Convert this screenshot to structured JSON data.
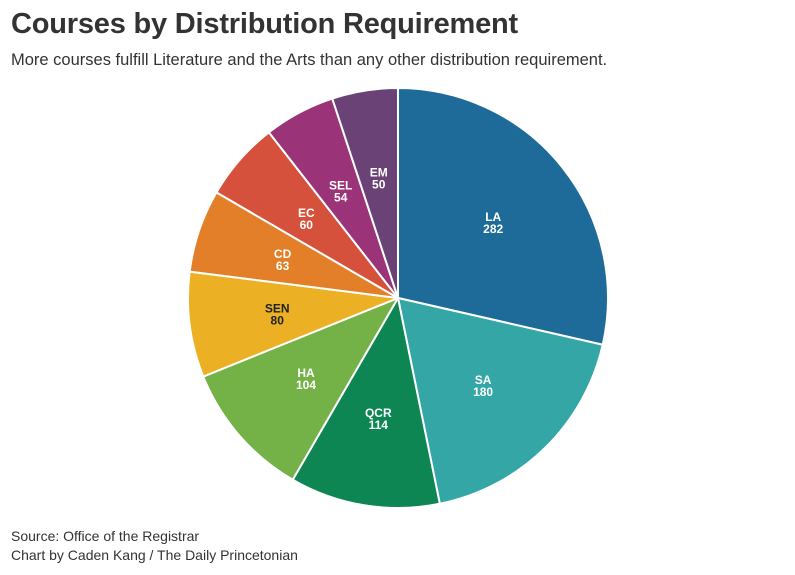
{
  "chart_data": {
    "type": "pie",
    "title": "Courses by Distribution Requirement",
    "subtitle": "More courses fulfill Literature and the Arts than any other distribution requirement.",
    "source": "Source: Office of the Registrar",
    "credit": "Chart by Caden Kang / The Daily Princetonian",
    "slices": [
      {
        "label": "LA",
        "value": 282,
        "color": "#1e6b99",
        "text_color": "#ffffff"
      },
      {
        "label": "SA",
        "value": 180,
        "color": "#34a6a6",
        "text_color": "#ffffff"
      },
      {
        "label": "QCR",
        "value": 114,
        "color": "#0d8653",
        "text_color": "#ffffff"
      },
      {
        "label": "HA",
        "value": 104,
        "color": "#74b147",
        "text_color": "#ffffff"
      },
      {
        "label": "SEN",
        "value": 80,
        "color": "#ebb024",
        "text_color": "#222222"
      },
      {
        "label": "CD",
        "value": 63,
        "color": "#e37f28",
        "text_color": "#ffffff"
      },
      {
        "label": "EC",
        "value": 60,
        "color": "#d5513b",
        "text_color": "#ffffff"
      },
      {
        "label": "SEL",
        "value": 54,
        "color": "#9a3377",
        "text_color": "#ffffff"
      },
      {
        "label": "EM",
        "value": 50,
        "color": "#6b4276",
        "text_color": "#ffffff"
      }
    ]
  }
}
